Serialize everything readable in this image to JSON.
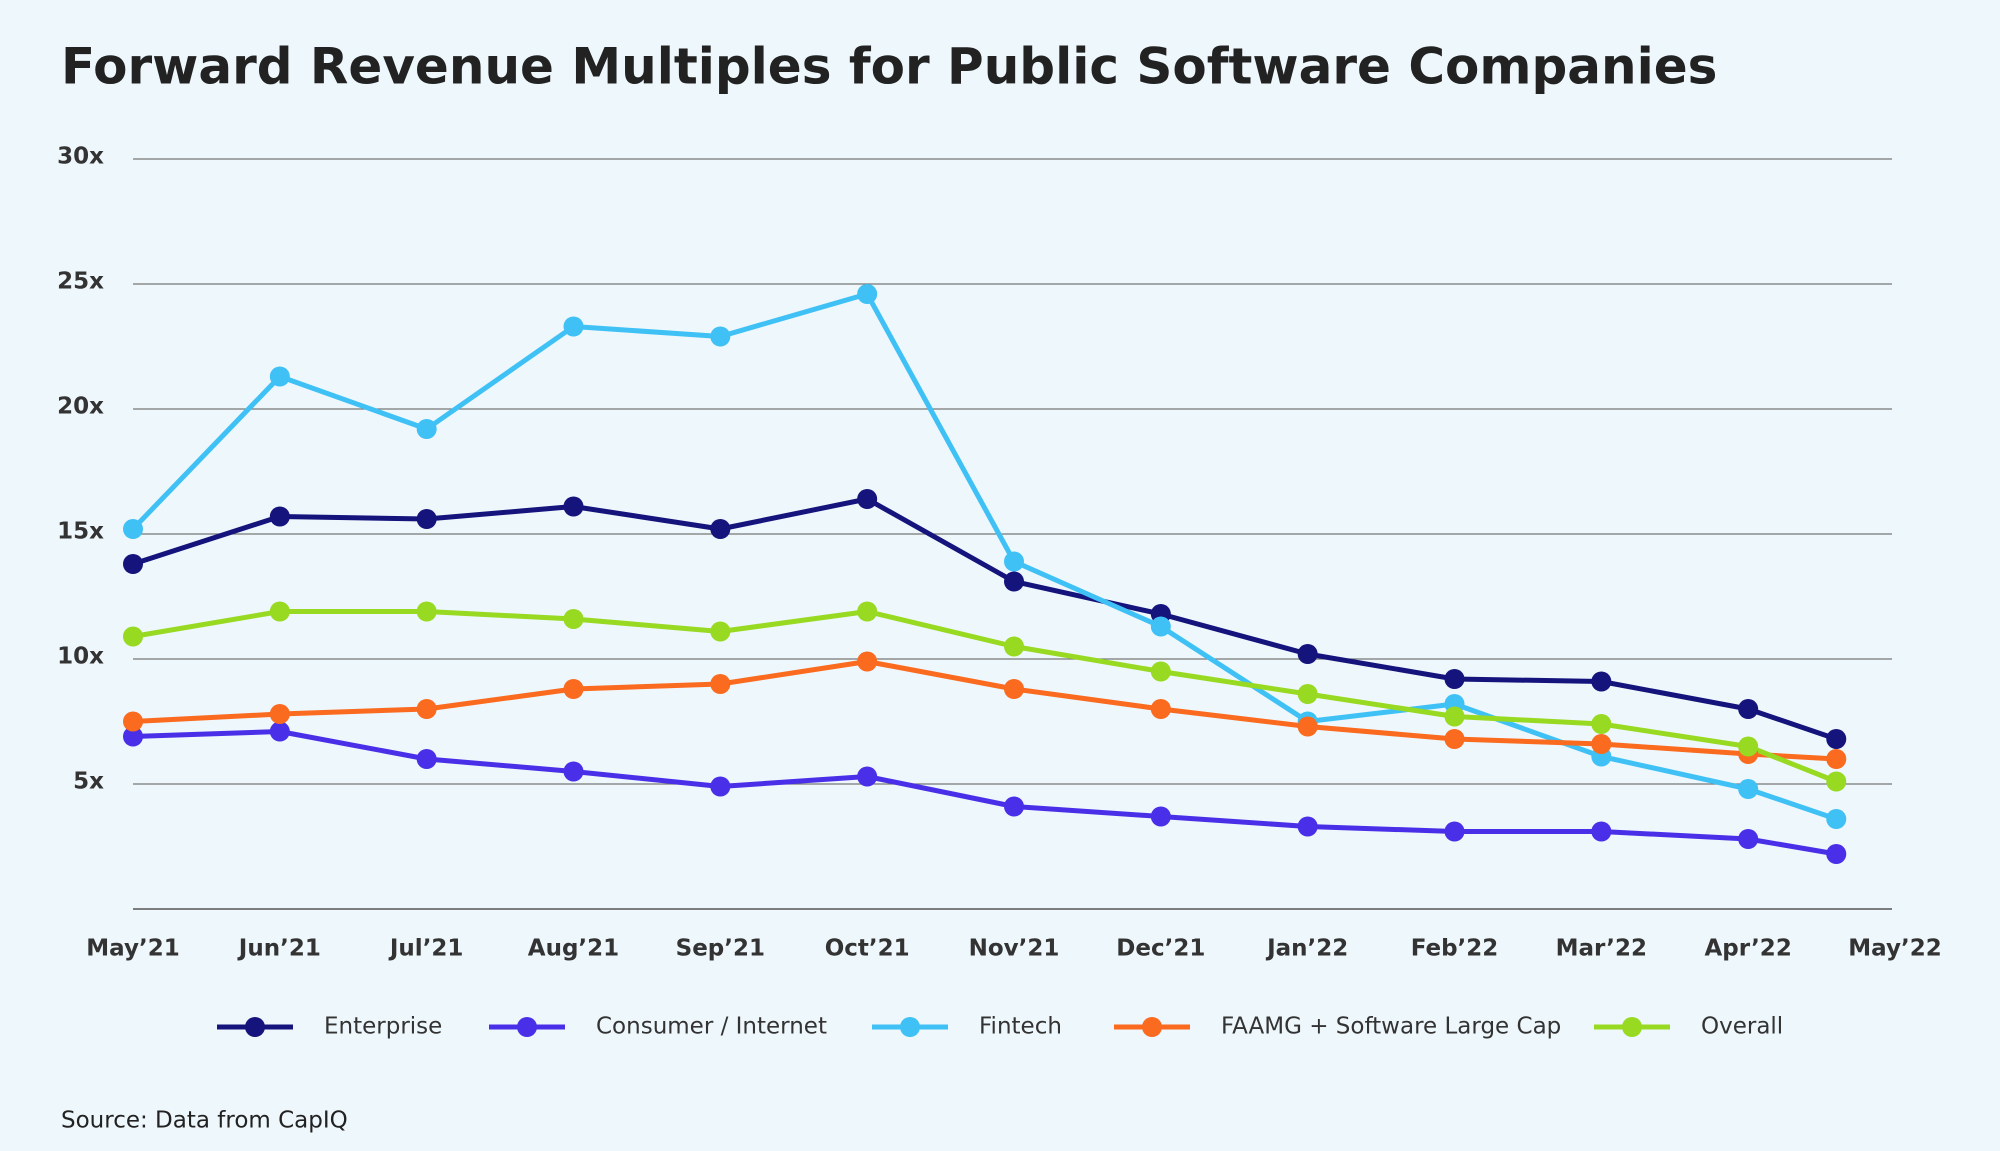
{
  "chart_data": {
    "type": "line",
    "title": "Forward Revenue Multiples for Public Software Companies",
    "source": "Source: Data from CapIQ",
    "x": [
      0,
      1,
      2,
      3,
      4,
      5,
      6,
      7,
      8,
      9,
      10,
      11,
      11.6
    ],
    "xlim": [
      0,
      12
    ],
    "xticks": [
      {
        "value": 0,
        "label": "May’21"
      },
      {
        "value": 1,
        "label": "Jun’21"
      },
      {
        "value": 2,
        "label": "Jul’21"
      },
      {
        "value": 3,
        "label": "Aug’21"
      },
      {
        "value": 4,
        "label": "Sep’21"
      },
      {
        "value": 5,
        "label": "Oct’21"
      },
      {
        "value": 6,
        "label": "Nov’21"
      },
      {
        "value": 7,
        "label": "Dec’21"
      },
      {
        "value": 8,
        "label": "Jan’22"
      },
      {
        "value": 9,
        "label": "Feb’22"
      },
      {
        "value": 10,
        "label": "Mar’22"
      },
      {
        "value": 11,
        "label": "Apr’22"
      },
      {
        "value": 12,
        "label": "May’22"
      }
    ],
    "ylim": [
      0,
      30
    ],
    "yticks": [
      {
        "value": 5,
        "label": "5x"
      },
      {
        "value": 10,
        "label": "10x"
      },
      {
        "value": 15,
        "label": "15x"
      },
      {
        "value": 20,
        "label": "20x"
      },
      {
        "value": 25,
        "label": "25x"
      },
      {
        "value": 30,
        "label": "30x"
      }
    ],
    "grid": true,
    "legend": "bottom",
    "series": [
      {
        "name": "Enterprise",
        "color": "#15137c",
        "values": [
          13.8,
          15.7,
          15.6,
          16.1,
          15.2,
          16.4,
          13.1,
          11.8,
          10.2,
          9.2,
          9.1,
          8.0,
          6.8
        ]
      },
      {
        "name": "Consumer / Internet",
        "color": "#4a2fe8",
        "values": [
          6.9,
          7.1,
          6.0,
          5.5,
          4.9,
          5.3,
          4.1,
          3.7,
          3.3,
          3.1,
          3.1,
          2.8,
          2.2
        ]
      },
      {
        "name": "Fintech",
        "color": "#3fc1f5",
        "values": [
          15.2,
          21.3,
          19.2,
          23.3,
          22.9,
          24.6,
          13.9,
          11.3,
          7.5,
          8.2,
          6.1,
          4.8,
          3.6
        ]
      },
      {
        "name": "FAAMG + Software Large Cap",
        "color": "#fa6a1f",
        "values": [
          7.5,
          7.8,
          8.0,
          8.8,
          9.0,
          9.9,
          8.8,
          8.0,
          7.3,
          6.8,
          6.6,
          6.2,
          6.0
        ]
      },
      {
        "name": "Overall",
        "color": "#98d922",
        "values": [
          10.9,
          11.9,
          11.9,
          11.6,
          11.1,
          11.9,
          10.5,
          9.5,
          8.6,
          7.7,
          7.4,
          6.5,
          5.1
        ]
      }
    ]
  }
}
